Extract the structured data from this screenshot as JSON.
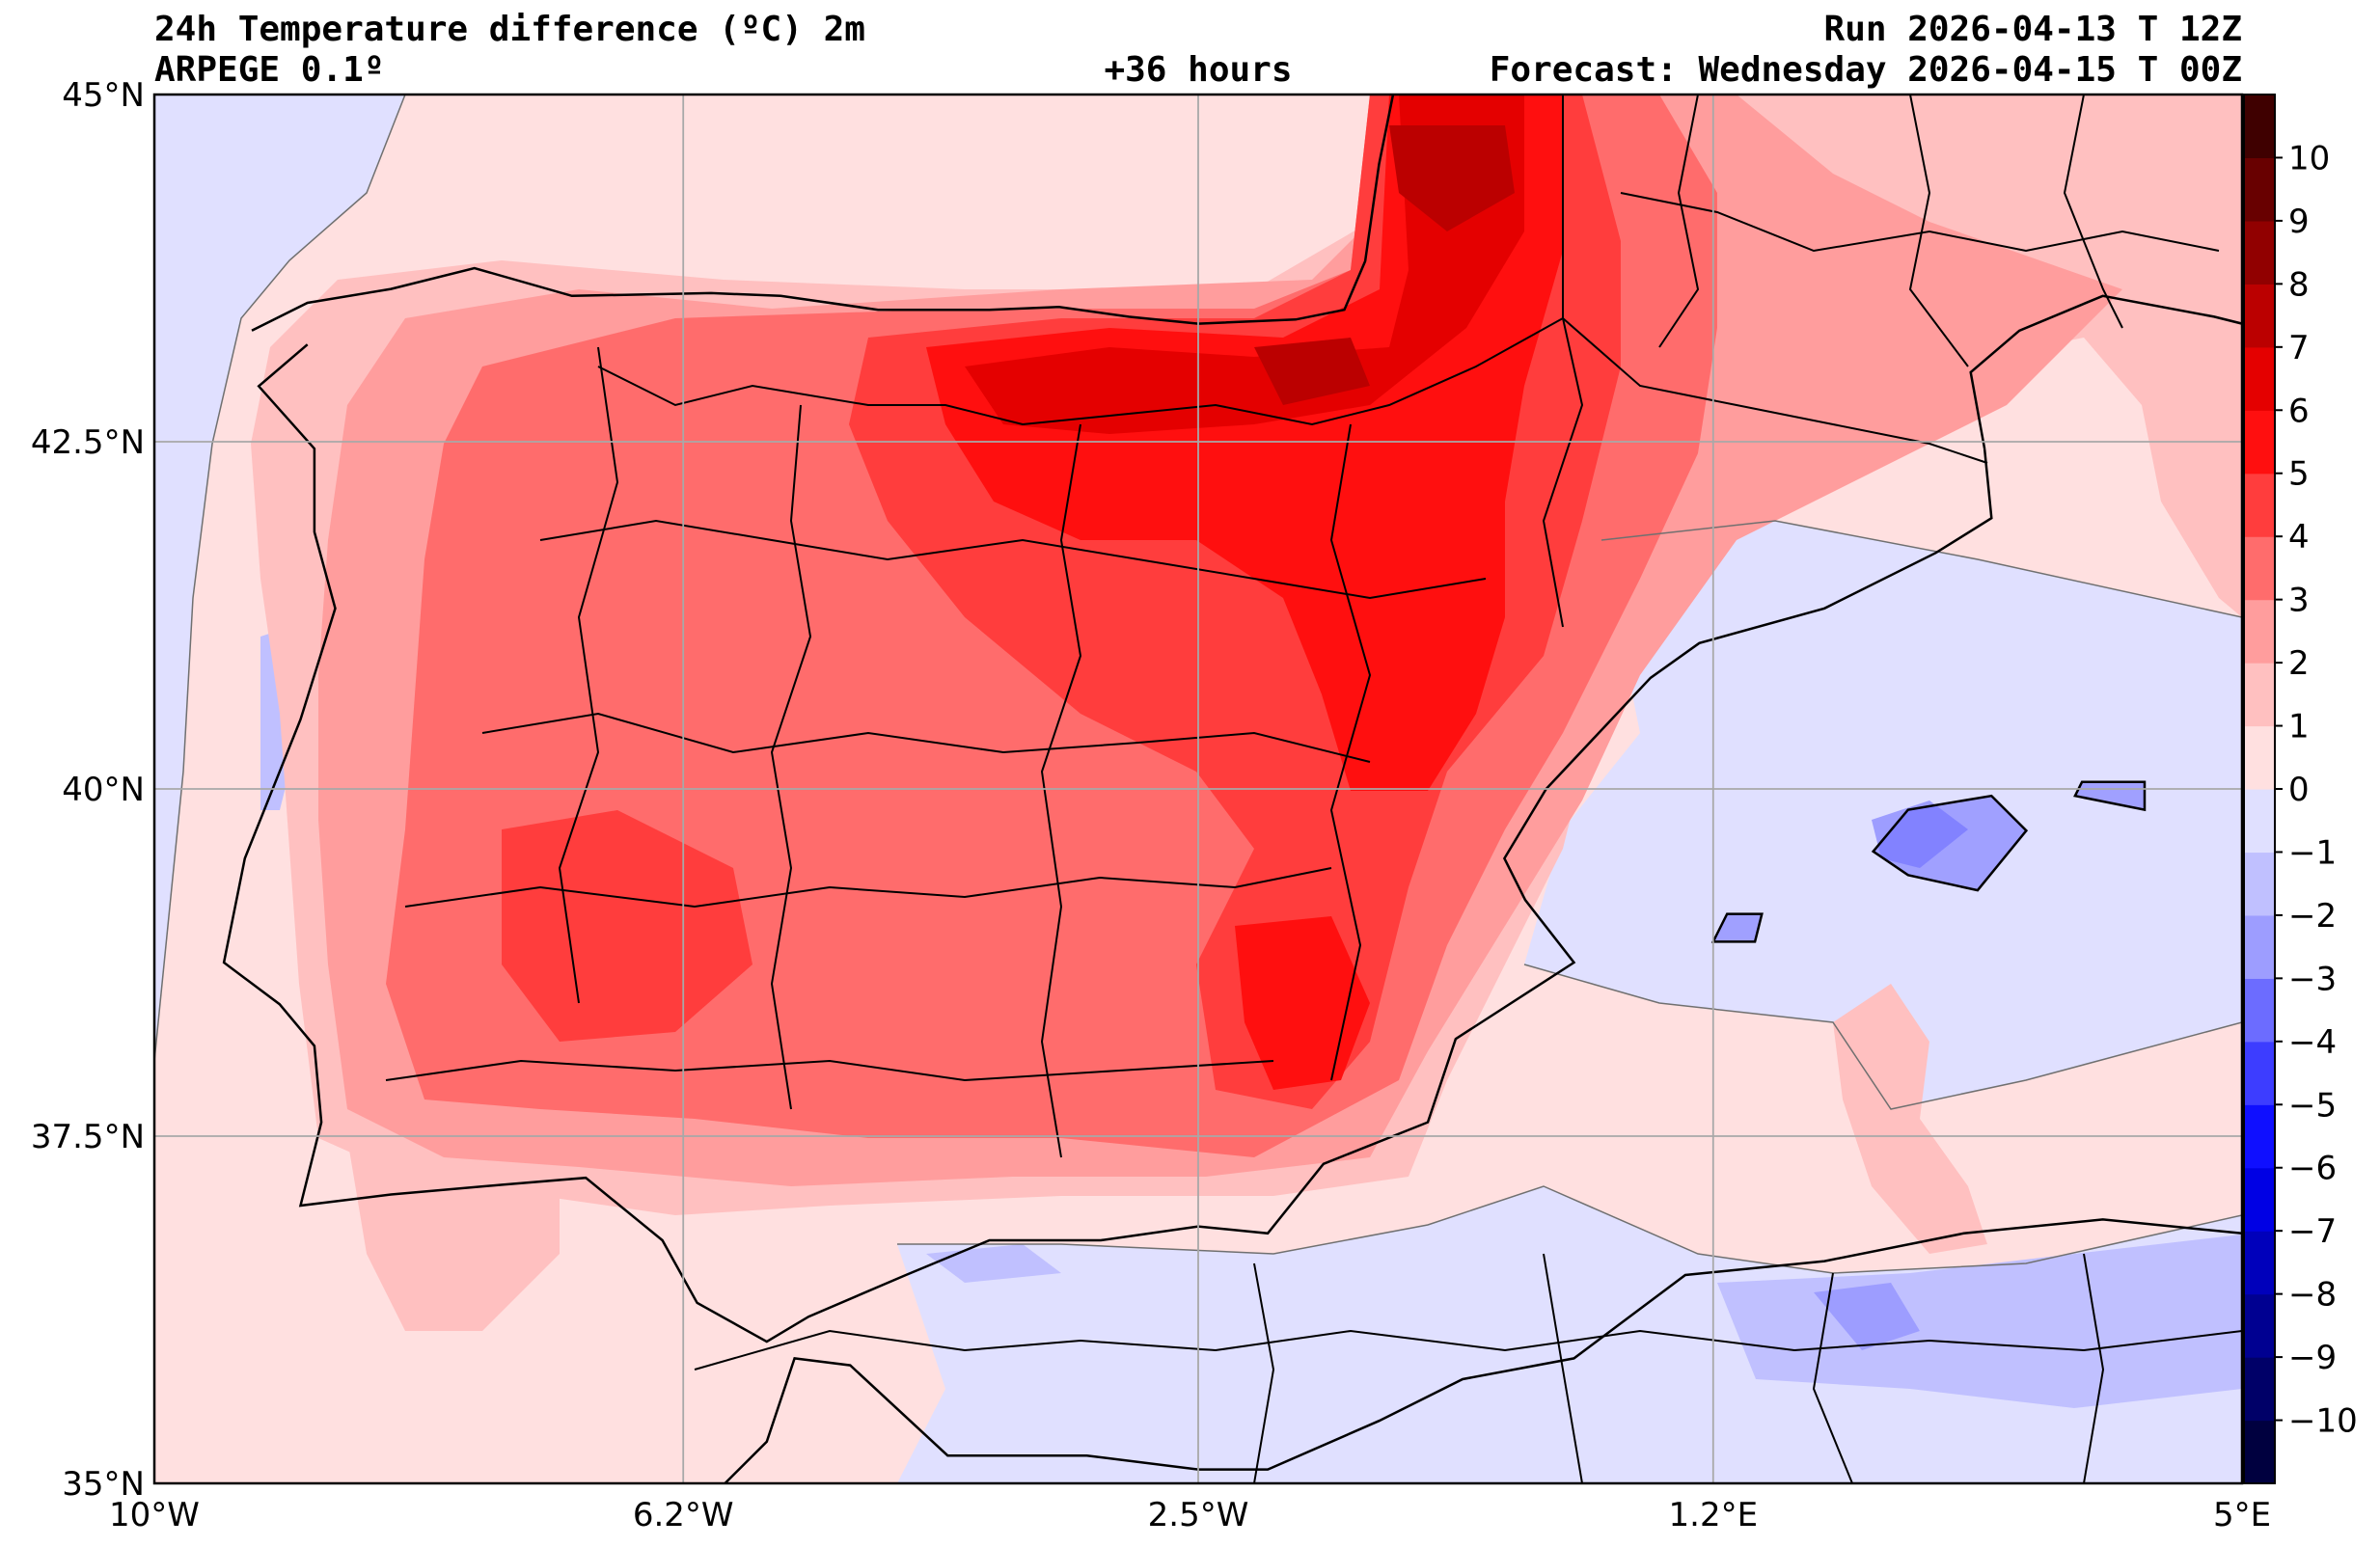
{
  "header": {
    "title": "24h Temperature difference (ºC) 2m",
    "model": "ARPEGE 0.1º",
    "lead": "+36 hours",
    "run": "Run 2026-04-13 T 12Z",
    "forecast": "Forecast: Wednesday 2026-04-15 T 00Z"
  },
  "map": {
    "lon_range": [
      -10,
      5
    ],
    "lat_range": [
      35,
      45
    ],
    "lat_ticks": [
      {
        "value": 45,
        "label": "45°N"
      },
      {
        "value": 42.5,
        "label": "42.5°N"
      },
      {
        "value": 40,
        "label": "40°N"
      },
      {
        "value": 37.5,
        "label": "37.5°N"
      },
      {
        "value": 35,
        "label": "35°N"
      }
    ],
    "lon_ticks": [
      {
        "value": -10,
        "label": "10°W"
      },
      {
        "value": -6.2,
        "label": "6.2°W"
      },
      {
        "value": -2.5,
        "label": "2.5°W"
      },
      {
        "value": 1.2,
        "label": "1.2°E"
      },
      {
        "value": 5,
        "label": "5°E"
      }
    ],
    "coast": [
      [
        -9.3,
        43.3
      ],
      [
        -8.9,
        43.5
      ],
      [
        -8.3,
        43.6
      ],
      [
        -7.7,
        43.75
      ],
      [
        -7.0,
        43.55
      ],
      [
        -6.0,
        43.57
      ],
      [
        -5.5,
        43.55
      ],
      [
        -4.8,
        43.45
      ],
      [
        -4.0,
        43.45
      ],
      [
        -3.5,
        43.47
      ],
      [
        -3.0,
        43.4
      ],
      [
        -2.5,
        43.35
      ],
      [
        -1.8,
        43.38
      ],
      [
        -1.45,
        43.45
      ],
      [
        -1.3,
        43.8
      ],
      [
        -1.2,
        44.5
      ],
      [
        -1.1,
        45.0
      ]
    ],
    "coast_west": [
      [
        -8.9,
        43.2
      ],
      [
        -9.25,
        42.9
      ],
      [
        -8.85,
        42.45
      ],
      [
        -8.85,
        41.85
      ],
      [
        -8.7,
        41.3
      ],
      [
        -8.95,
        40.5
      ],
      [
        -9.35,
        39.5
      ],
      [
        -9.5,
        38.75
      ],
      [
        -9.1,
        38.45
      ],
      [
        -8.85,
        38.15
      ],
      [
        -8.8,
        37.6
      ],
      [
        -8.95,
        37.0
      ],
      [
        -8.3,
        37.08
      ],
      [
        -7.5,
        37.15
      ],
      [
        -6.9,
        37.2
      ],
      [
        -6.35,
        36.75
      ],
      [
        -6.1,
        36.3
      ],
      [
        -5.6,
        36.02
      ],
      [
        -5.3,
        36.2
      ],
      [
        -4.6,
        36.5
      ],
      [
        -4.0,
        36.75
      ],
      [
        -3.2,
        36.75
      ],
      [
        -2.5,
        36.85
      ],
      [
        -2.0,
        36.8
      ],
      [
        -1.6,
        37.3
      ],
      [
        -0.85,
        37.6
      ],
      [
        -0.65,
        38.2
      ],
      [
        0.2,
        38.75
      ],
      [
        -0.15,
        39.2
      ],
      [
        -0.3,
        39.5
      ],
      [
        0.0,
        40.0
      ],
      [
        0.75,
        40.8
      ],
      [
        1.1,
        41.05
      ],
      [
        2.0,
        41.3
      ],
      [
        2.8,
        41.7
      ],
      [
        3.2,
        41.95
      ],
      [
        3.15,
        42.45
      ]
    ],
    "coast_france": [
      [
        3.15,
        42.45
      ],
      [
        3.05,
        43.0
      ],
      [
        3.4,
        43.3
      ],
      [
        4.0,
        43.55
      ],
      [
        4.8,
        43.4
      ],
      [
        5.0,
        43.35
      ]
    ],
    "coast_africa": [
      [
        -5.9,
        35.0
      ],
      [
        -5.6,
        35.3
      ],
      [
        -5.4,
        35.9
      ],
      [
        -5.0,
        35.85
      ],
      [
        -4.3,
        35.2
      ],
      [
        -3.3,
        35.2
      ],
      [
        -2.5,
        35.1
      ],
      [
        -2.0,
        35.1
      ],
      [
        -1.2,
        35.45
      ],
      [
        -0.6,
        35.75
      ],
      [
        0.2,
        35.9
      ],
      [
        1.0,
        36.5
      ],
      [
        2.0,
        36.6
      ],
      [
        3.0,
        36.8
      ],
      [
        4.0,
        36.9
      ],
      [
        5.0,
        36.8
      ]
    ],
    "islands": [
      [
        [
          2.35,
          39.55
        ],
        [
          2.6,
          39.38
        ],
        [
          3.1,
          39.27
        ],
        [
          3.45,
          39.7
        ],
        [
          3.2,
          39.95
        ],
        [
          2.6,
          39.85
        ]
      ],
      [
        [
          3.8,
          39.95
        ],
        [
          4.3,
          39.85
        ],
        [
          4.3,
          40.05
        ],
        [
          3.85,
          40.05
        ]
      ],
      [
        [
          1.2,
          38.9
        ],
        [
          1.5,
          38.9
        ],
        [
          1.55,
          39.1
        ],
        [
          1.3,
          39.1
        ]
      ]
    ],
    "contour_levels": [
      -1,
      0,
      1,
      2,
      3,
      4,
      5,
      6
    ]
  },
  "colorbar": {
    "levels": [
      -11,
      -10,
      -9,
      -8,
      -7,
      -6,
      -5,
      -4,
      -3,
      -2,
      -1,
      0,
      1,
      2,
      3,
      4,
      5,
      6,
      7,
      8,
      9,
      10,
      11
    ],
    "colors": [
      "#00003f",
      "#000068",
      "#000091",
      "#0000bb",
      "#0000e4",
      "#0f0fff",
      "#3d3dff",
      "#6c6cff",
      "#9d9dff",
      "#c0c0ff",
      "#e0e0ff",
      "#ffe0e0",
      "#ffc0c0",
      "#ff9d9d",
      "#ff6c6c",
      "#ff3d3d",
      "#ff0f0f",
      "#e40000",
      "#bb0000",
      "#910000",
      "#680000",
      "#3f0000"
    ],
    "tick_labels": [
      "−10",
      "−9",
      "−8",
      "−7",
      "−6",
      "−5",
      "−4",
      "−3",
      "−2",
      "−1",
      "0",
      "1",
      "2",
      "3",
      "4",
      "5",
      "6",
      "7",
      "8",
      "9",
      "10"
    ]
  }
}
